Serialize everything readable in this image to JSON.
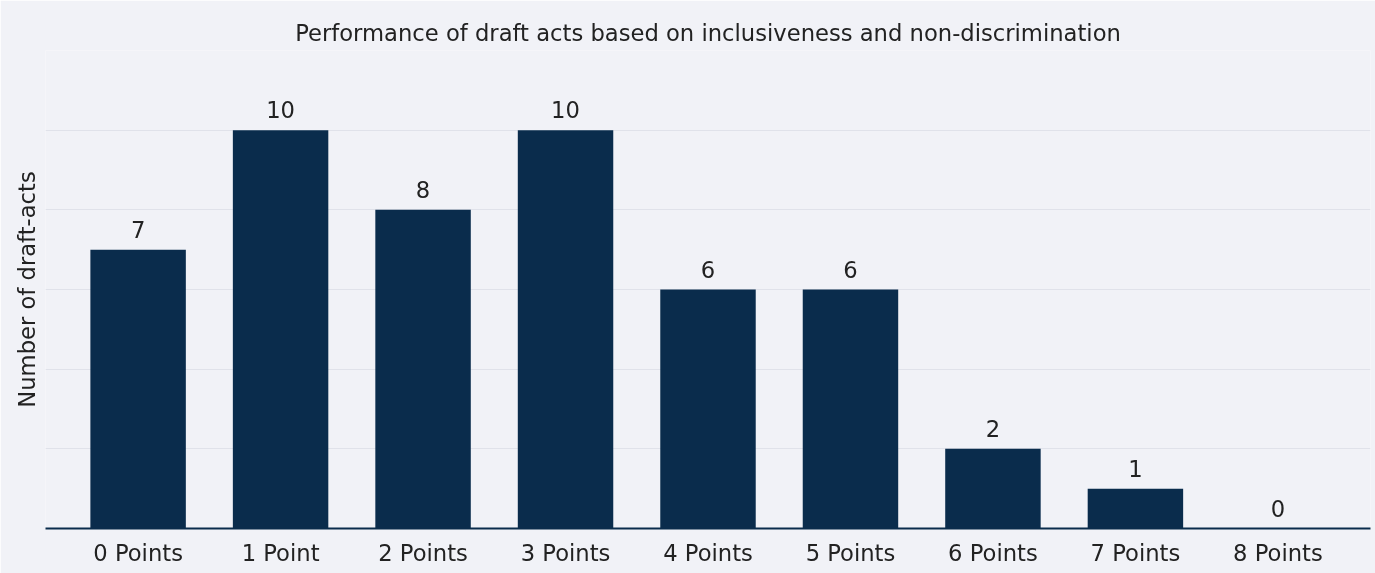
{
  "chart_data": {
    "type": "bar",
    "title": "Performance of draft acts based on inclusiveness and non-discrimination",
    "ylabel": "Number of draft-acts",
    "categories": [
      "0 Points",
      "1 Point",
      "2 Points",
      "3 Points",
      "4 Points",
      "5 Points",
      "6 Points",
      "7 Points",
      "8 Points"
    ],
    "values": [
      7,
      10,
      8,
      10,
      6,
      6,
      2,
      1,
      0
    ],
    "color": "#0a2c4c",
    "ylim": [
      0,
      12
    ],
    "yticks": [
      {
        "value": 0,
        "label": null
      },
      {
        "value": 2,
        "label": null
      },
      {
        "value": 4,
        "label": null
      },
      {
        "value": 6,
        "label": null
      },
      {
        "value": 8,
        "label": null
      },
      {
        "value": 10,
        "label": null
      },
      {
        "value": 12,
        "label": null
      }
    ],
    "grid": "y",
    "tick_labels": "x",
    "data_labels": true
  }
}
